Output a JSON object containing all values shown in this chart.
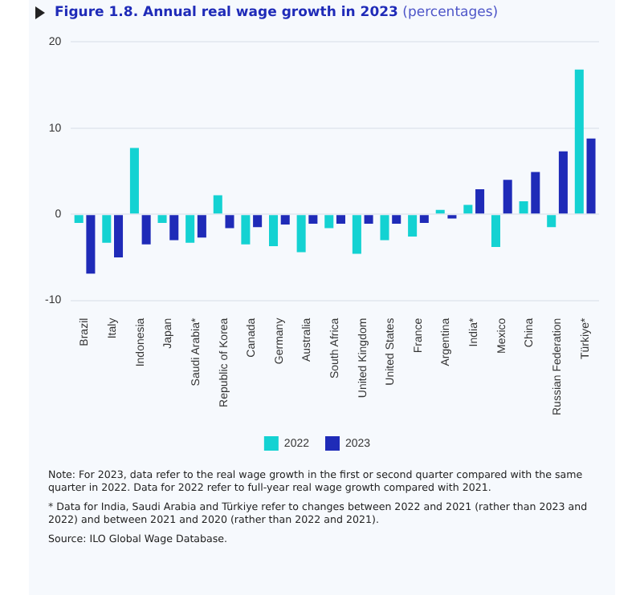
{
  "chart_data": {
    "type": "bar",
    "title": "Figure 1.8.  Annual real wage growth in 2023",
    "subtitle": "(percentages)",
    "categories": [
      "Brazil",
      "Italy",
      "Indonesia",
      "Japan",
      "Saudi Arabia*",
      "Republic of Korea",
      "Canada",
      "Germany",
      "Australia",
      "South Africa",
      "United Kingdom",
      "United States",
      "France",
      "Argentina",
      "India*",
      "Mexico",
      "China",
      "Russian Federation",
      "Türkiye*"
    ],
    "series": [
      {
        "name": "2022",
        "color": "#14d2d2",
        "values": [
          -1.0,
          -3.3,
          7.7,
          -1.0,
          -3.3,
          2.2,
          -3.5,
          -3.7,
          -4.4,
          -1.6,
          -4.6,
          -3.0,
          -2.6,
          0.5,
          1.1,
          -3.8,
          1.5,
          -1.5,
          16.8
        ]
      },
      {
        "name": "2023",
        "color": "#1f2bb8",
        "values": [
          -6.9,
          -5.0,
          -3.5,
          -3.0,
          -2.7,
          -1.6,
          -1.5,
          -1.2,
          -1.1,
          -1.1,
          -1.1,
          -1.1,
          -1.0,
          -0.5,
          2.9,
          4.0,
          4.9,
          7.3,
          8.8
        ]
      }
    ],
    "ylim": [
      -10,
      20
    ],
    "yticks": [
      -10,
      0,
      10,
      20
    ],
    "grid": "y",
    "legend": "bottom",
    "annotations": [
      "Note: For 2023, data refer to the real wage growth in the first or second quarter compared with the same quarter in 2022. Data for 2022 refer to full-year real wage growth compared with 2021.",
      "* Data for India, Saudi Arabia and Türkiye refer to changes between 2022 and 2021 (rather than 2023 and 2022) and between 2021 and 2020 (rather than 2022 and 2021).",
      "Source: ILO Global Wage Database."
    ]
  }
}
